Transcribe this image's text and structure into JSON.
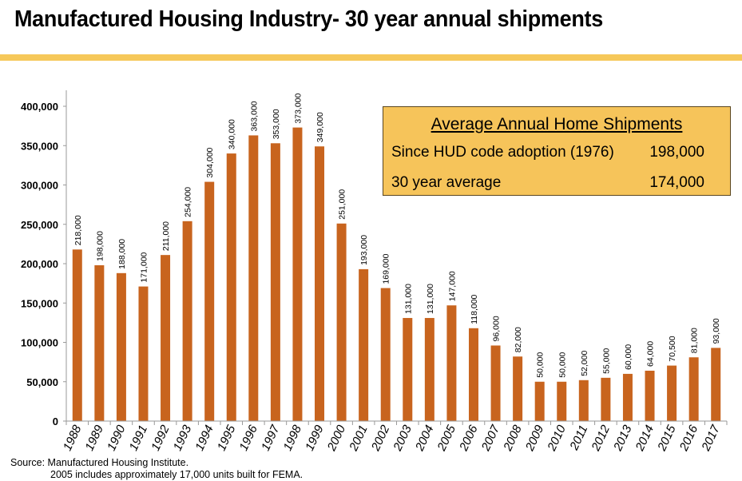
{
  "header": {
    "title": "Manufactured Housing Industry- 30 year annual shipments"
  },
  "colors": {
    "bar": "#c8641e",
    "accent_rule": "#f6c85a",
    "box_fill": "#f6c45a",
    "axis": "#999999"
  },
  "summary_box": {
    "heading": "Average Annual Home Shipments",
    "rows": [
      {
        "label": "Since HUD code adoption (1976)",
        "value": "198,000"
      },
      {
        "label": "30 year average",
        "value": "174,000"
      }
    ]
  },
  "footnote": {
    "source": "Source:  Manufactured Housing Institute.",
    "note": "2005 includes approximately 17,000 units built for FEMA."
  },
  "chart_data": {
    "type": "bar",
    "title": "Manufactured Housing Industry- 30 year annual shipments",
    "xlabel": "",
    "ylabel": "",
    "ylim": [
      0,
      400000
    ],
    "yticks": [
      0,
      50000,
      100000,
      150000,
      200000,
      250000,
      300000,
      350000,
      400000
    ],
    "ytick_labels": [
      "0",
      "50,000",
      "100,000",
      "150,000",
      "200,000",
      "250,000",
      "300,000",
      "350,000",
      "400,000"
    ],
    "grid": false,
    "legend": "none",
    "categories": [
      "1988",
      "1989",
      "1990",
      "1991",
      "1992",
      "1993",
      "1994",
      "1995",
      "1996",
      "1997",
      "1998",
      "1999",
      "2000",
      "2001",
      "2002",
      "2003",
      "2004",
      "2005",
      "2006",
      "2007",
      "2008",
      "2009",
      "2010",
      "2011",
      "2012",
      "2013",
      "2014",
      "2015",
      "2016",
      "2017"
    ],
    "values": [
      218000,
      198000,
      188000,
      171000,
      211000,
      254000,
      304000,
      340000,
      363000,
      353000,
      373000,
      349000,
      251000,
      193000,
      169000,
      131000,
      131000,
      147000,
      118000,
      96000,
      82000,
      50000,
      50000,
      52000,
      55000,
      60000,
      64000,
      70500,
      81000,
      93000
    ],
    "data_labels": [
      "218,000",
      "198,000",
      "188,000",
      "171,000",
      "211,000",
      "254,000",
      "304,000",
      "340,000",
      "363,000",
      "353,000",
      "373,000",
      "349,000",
      "251,000",
      "193,000",
      "169,000",
      "131,000",
      "131,000",
      "147,000",
      "118,000",
      "96,000",
      "82,000",
      "50,000",
      "50,000",
      "52,000",
      "55,000",
      "60,000",
      "64,000",
      "70,500",
      "81,000",
      "93,000"
    ]
  }
}
